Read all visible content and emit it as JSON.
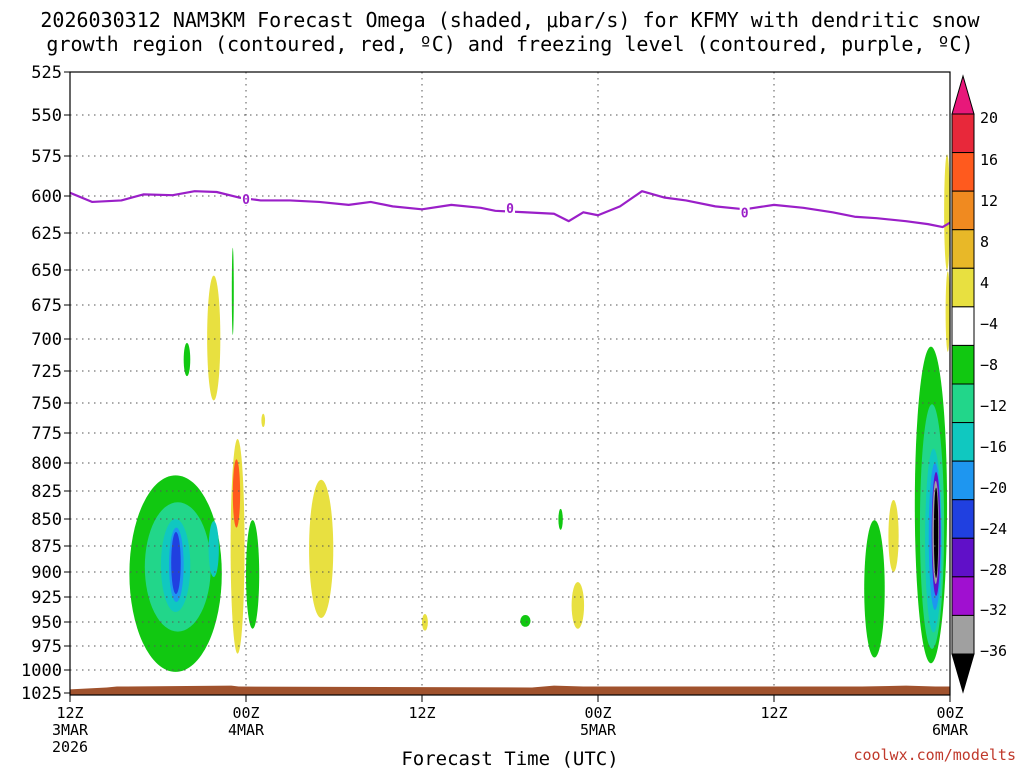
{
  "title": {
    "line1": "2026030312 NAM3KM Forecast Omega (shaded, μbar/s) for KFMY with dendritic snow",
    "line2": "growth region (contoured, red, ºC) and freezing level (contoured, purple, ºC)"
  },
  "credit": "coolwx.com/modelts",
  "colors": {
    "freezing_level": "#9a1fc8",
    "ground": "#a0522d",
    "grid": "#555555"
  },
  "chart_data": {
    "type": "heatmap",
    "title": "2026030312 NAM3KM Forecast Omega (shaded, μbar/s) for KFMY with dendritic snow growth region (contoured, red, ºC) and freezing level (contoured, purple, ºC)",
    "xlabel": "Forecast Time (UTC)",
    "ylabel": "",
    "x_range_hours": [
      0,
      60
    ],
    "y_range_mb": [
      525,
      1025
    ],
    "y_ticks": [
      525,
      550,
      575,
      600,
      625,
      650,
      675,
      700,
      725,
      750,
      775,
      800,
      825,
      850,
      875,
      900,
      925,
      950,
      975,
      1000,
      1025
    ],
    "x_ticks": [
      {
        "hour": 0,
        "lines": [
          "12Z",
          "3MAR",
          "2026"
        ]
      },
      {
        "hour": 12,
        "lines": [
          "00Z",
          "4MAR"
        ]
      },
      {
        "hour": 24,
        "lines": [
          "12Z"
        ]
      },
      {
        "hour": 36,
        "lines": [
          "00Z",
          "5MAR"
        ]
      },
      {
        "hour": 48,
        "lines": [
          "12Z"
        ]
      },
      {
        "hour": 60,
        "lines": [
          "00Z",
          "6MAR"
        ]
      }
    ],
    "grid": true,
    "colorbar": {
      "labels": [
        "20",
        "16",
        "12",
        "8",
        "4",
        "−4",
        "−8",
        "−12",
        "−16",
        "−20",
        "−24",
        "−28",
        "−32",
        "−36"
      ],
      "bins": [
        {
          "color": "#e8187a",
          "type": "top-arrow"
        },
        {
          "color": "#e8283a",
          "label": "20"
        },
        {
          "color": "#ff5a1e",
          "label": "16"
        },
        {
          "color": "#f08a20",
          "label": "12"
        },
        {
          "color": "#e8b828",
          "label": "8"
        },
        {
          "color": "#e8e040",
          "label": "4"
        },
        {
          "color": "#ffffff",
          "label": "−4"
        },
        {
          "color": "#11c811",
          "label": "−8"
        },
        {
          "color": "#22d68a",
          "label": "−12"
        },
        {
          "color": "#10c8c0",
          "label": "−16"
        },
        {
          "color": "#1e96f0",
          "label": "−20"
        },
        {
          "color": "#2040e0",
          "label": "−24"
        },
        {
          "color": "#6010c8",
          "label": "−28"
        },
        {
          "color": "#a010d0",
          "label": "−32"
        },
        {
          "color": "#a0a0a0",
          "label": "−36"
        },
        {
          "color": "#000000",
          "type": "bottom-arrow"
        }
      ]
    },
    "freezing_level": {
      "name": "freezing level 0 ºC",
      "contour_label": "0",
      "points": [
        [
          0,
          598
        ],
        [
          1.5,
          604
        ],
        [
          3.5,
          603
        ],
        [
          5,
          599
        ],
        [
          7,
          599.5
        ],
        [
          8.5,
          597
        ],
        [
          10,
          597.5
        ],
        [
          11.5,
          601
        ],
        [
          13,
          603
        ],
        [
          15,
          603
        ],
        [
          17,
          604
        ],
        [
          19,
          606
        ],
        [
          20.5,
          604
        ],
        [
          22,
          607
        ],
        [
          24,
          609
        ],
        [
          26,
          606
        ],
        [
          28,
          608
        ],
        [
          29,
          610
        ],
        [
          31,
          611
        ],
        [
          33,
          612
        ],
        [
          34,
          617
        ],
        [
          35,
          611
        ],
        [
          36,
          613
        ],
        [
          37.5,
          607
        ],
        [
          39,
          597
        ],
        [
          40.5,
          601
        ],
        [
          42,
          603
        ],
        [
          44,
          607
        ],
        [
          46,
          609
        ],
        [
          48,
          606
        ],
        [
          50,
          608
        ],
        [
          52,
          611
        ],
        [
          53.5,
          614
        ],
        [
          55,
          615
        ],
        [
          57,
          617
        ],
        [
          58.5,
          619
        ],
        [
          59.5,
          621
        ],
        [
          60,
          618
        ]
      ],
      "label_positions": [
        [
          12,
          602
        ],
        [
          30,
          608
        ],
        [
          46,
          611
        ]
      ]
    },
    "omega_regions": [
      {
        "label": "green-2.8",
        "value": -6,
        "hours": [
          4.05,
          10.35
        ],
        "mb": [
          811,
          1002
        ]
      },
      {
        "label": "teal-2.9",
        "value": -10,
        "hours": [
          5.1,
          9.6
        ],
        "mb": [
          835,
          960
        ]
      },
      {
        "label": "cyan-3.7",
        "value": -14,
        "hours": [
          6.2,
          8.2
        ],
        "mb": [
          850,
          940
        ]
      },
      {
        "label": "cyan-8.5",
        "value": -14,
        "hours": [
          9.45,
          10.15
        ],
        "mb": [
          852,
          905
        ]
      },
      {
        "label": "blue-1.8",
        "value": -18,
        "hours": [
          6.75,
          7.75
        ],
        "mb": [
          858,
          930
        ]
      },
      {
        "label": "blue-6.6",
        "value": -22,
        "hours": [
          6.9,
          7.55
        ],
        "mb": [
          862,
          922
        ]
      },
      {
        "label": "green-6.0",
        "value": -6,
        "hours": [
          7.75,
          8.2
        ],
        "mb": [
          703,
          729
        ]
      },
      {
        "label": "yellow-6.5",
        "value": 6,
        "hours": [
          9.35,
          10.25
        ],
        "mb": [
          654,
          748
        ]
      },
      {
        "label": "green-7.7",
        "value": -6,
        "hours": [
          11.05,
          11.15
        ],
        "mb": [
          635,
          697
        ]
      },
      {
        "label": "yellow-8.0",
        "value": 6,
        "hours": [
          10.95,
          11.9
        ],
        "mb": [
          780,
          983
        ]
      },
      {
        "label": "orange-8.1",
        "value": 14,
        "hours": [
          11.1,
          11.6
        ],
        "mb": [
          797,
          858
        ]
      },
      {
        "label": "green-9.5",
        "value": -6,
        "hours": [
          12.0,
          12.9
        ],
        "mb": [
          851,
          957
        ]
      },
      {
        "label": "yellow-9.9",
        "value": 6,
        "hours": [
          13.05,
          13.3
        ],
        "mb": [
          759,
          770
        ]
      },
      {
        "label": "yellow-10.3",
        "value": 6,
        "hours": [
          16.3,
          17.95
        ],
        "mb": [
          815,
          946
        ]
      },
      {
        "label": "yellow-10.6",
        "value": 6,
        "hours": [
          24.0,
          24.4
        ],
        "mb": [
          942,
          959
        ]
      },
      {
        "label": "green-12.1",
        "value": -6,
        "hours": [
          30.7,
          31.4
        ],
        "mb": [
          943,
          955
        ]
      },
      {
        "label": "green-12.5",
        "value": -6,
        "hours": [
          33.3,
          33.6
        ],
        "mb": [
          841,
          860
        ]
      },
      {
        "label": "yellow-13.3",
        "value": 6,
        "hours": [
          34.2,
          35.05
        ],
        "mb": [
          910,
          957
        ]
      },
      {
        "label": "green-15.7",
        "value": -6,
        "hours": [
          54.15,
          55.55
        ],
        "mb": [
          851,
          987
        ]
      },
      {
        "label": "yellow-17.0",
        "value": 6,
        "hours": [
          55.8,
          56.5
        ],
        "mb": [
          833,
          900
        ]
      },
      {
        "label": "green-19.1",
        "value": -6,
        "hours": [
          57.6,
          59.8
        ],
        "mb": [
          706,
          993
        ]
      },
      {
        "label": "teal-19.4",
        "value": -10,
        "hours": [
          57.95,
          59.6
        ],
        "mb": [
          751,
          978
        ]
      },
      {
        "label": "cyan-19.7",
        "value": -14,
        "hours": [
          58.3,
          59.45
        ],
        "mb": [
          788,
          961
        ]
      },
      {
        "label": "blue-19.8",
        "value": -18,
        "hours": [
          58.55,
          59.4
        ],
        "mb": [
          800,
          938
        ]
      },
      {
        "label": "purple-19.9",
        "value": -26,
        "hours": [
          58.75,
          59.35
        ],
        "mb": [
          808,
          924
        ]
      },
      {
        "label": "gray-19.9",
        "value": -34,
        "hours": [
          58.8,
          59.25
        ],
        "mb": [
          816,
          912
        ]
      },
      {
        "label": "black-19.9",
        "value": -38,
        "hours": [
          58.9,
          59.2
        ],
        "mb": [
          822,
          906
        ]
      },
      {
        "label": "yellow-edge-top",
        "value": 6,
        "hours": [
          59.6,
          60
        ],
        "mb": [
          574,
          650
        ]
      },
      {
        "label": "yellow-edge-upper",
        "value": 6,
        "hours": [
          59.7,
          60
        ],
        "mb": [
          651,
          710
        ]
      }
    ],
    "ground_surface_mb": [
      [
        0,
        1021
      ],
      [
        2.5,
        1019
      ],
      [
        3.2,
        1018
      ],
      [
        11,
        1017
      ],
      [
        11.5,
        1018
      ],
      [
        31.5,
        1019
      ],
      [
        33,
        1017
      ],
      [
        35,
        1018
      ],
      [
        54,
        1018
      ],
      [
        57,
        1017
      ],
      [
        59,
        1018
      ],
      [
        60,
        1018
      ]
    ]
  }
}
